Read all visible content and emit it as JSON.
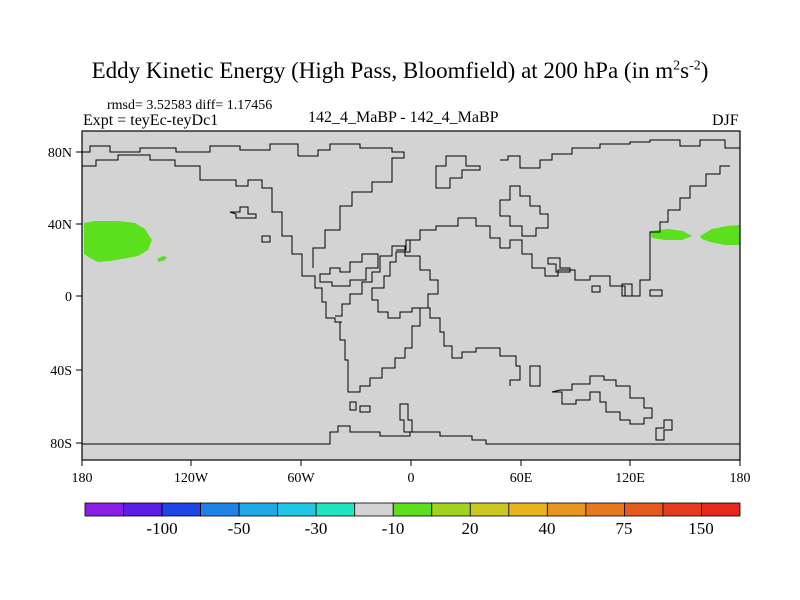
{
  "title": {
    "main": "Eddy Kinetic Energy (High Pass, Bloomfield) at 200 hPa (in m",
    "sup1": "2",
    "mid": "s",
    "sup2": "-2",
    "end": ")"
  },
  "subtitle": {
    "stats": "rmsd= 3.52583 diff= 1.17456",
    "experiment": "Expt = teyEc-teyDc1",
    "comparison": "142_4_MaBP - 142_4_MaBP",
    "season": "DJF"
  },
  "map": {
    "background_color": "#d3d3d3",
    "coast_color": "#000000",
    "y_ticks": [
      "80N",
      "40N",
      "0",
      "40S",
      "80S"
    ],
    "x_ticks": [
      "180",
      "120W",
      "60W",
      "0",
      "60E",
      "120E",
      "180"
    ],
    "anomaly_color": "#5ce01e",
    "anomalies": [
      {
        "region": "north-pacific-east"
      },
      {
        "region": "north-pacific-small"
      },
      {
        "region": "north-pacific-west"
      }
    ]
  },
  "colorbar": {
    "colors": [
      "#8a1ee6",
      "#5a1ee6",
      "#1e46e6",
      "#1e82e6",
      "#1eaae6",
      "#1ec8e6",
      "#1ee6be",
      "#d3d3d3",
      "#5ce01e",
      "#a0d21e",
      "#c8c81e",
      "#e6b41e",
      "#e6961e",
      "#e6781e",
      "#e65a1e",
      "#e63c1e",
      "#e6281e"
    ],
    "labels": [
      "-100",
      "-50",
      "-30",
      "-10",
      "20",
      "40",
      "75",
      "150"
    ]
  }
}
